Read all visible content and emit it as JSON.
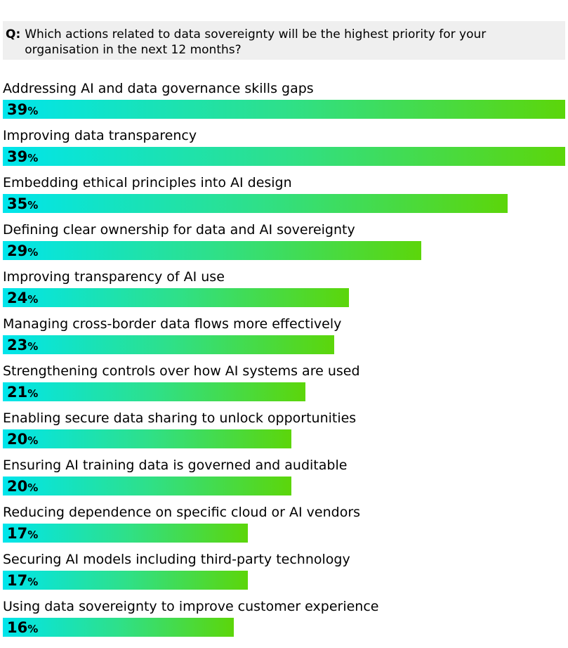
{
  "question": {
    "prefix": "Q:",
    "text": "Which actions related to data sovereignty will be the highest priority for your organisation in the next 12 months?"
  },
  "colors": {
    "gradient_start": "#00e5ec",
    "gradient_mid": "#2ee08a",
    "gradient_end": "#5cd60a",
    "question_bg": "#efefef"
  },
  "chart_data": {
    "type": "bar",
    "orientation": "horizontal",
    "value_suffix": "%",
    "xlim": [
      0,
      39
    ],
    "grid": false,
    "legend": "none",
    "categories": [
      "Addressing AI and data governance skills gaps",
      "Improving data transparency",
      "Embedding ethical principles into AI design",
      "Defining clear ownership for data and AI sovereignty",
      "Improving transparency of AI use",
      "Managing cross-border data flows more effectively",
      "Strengthening controls over how AI systems are used",
      "Enabling secure data sharing to unlock opportunities",
      "Ensuring AI training data is governed and auditable",
      "Reducing dependence on specific cloud or AI vendors",
      "Securing AI models including third-party technology",
      "Using data sovereignty to improve customer experience"
    ],
    "values": [
      39,
      39,
      35,
      29,
      24,
      23,
      21,
      20,
      20,
      17,
      17,
      16
    ]
  }
}
